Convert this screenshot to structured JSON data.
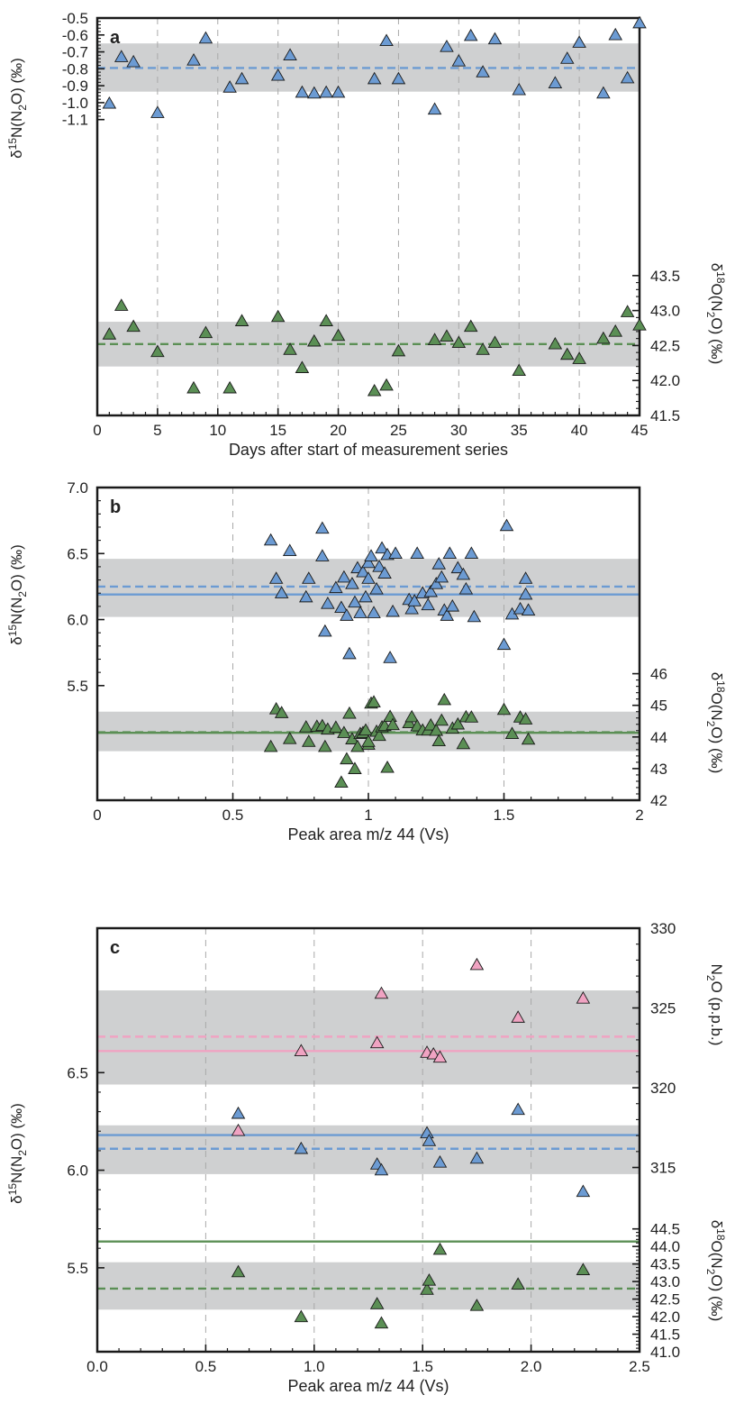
{
  "colors": {
    "blue": "#6c9bd3",
    "green": "#5b8f55",
    "pink": "#f0a3c2",
    "band": "#cfd0d1",
    "outline": "#1a1a1a"
  },
  "chart_data": [
    {
      "type": "scatter",
      "panel_label": "a",
      "xlabel": "Days after start of measurement series",
      "ylabel_left": {
        "base": "δ",
        "sup1": "15",
        "mid": "N(N",
        "sub": "2",
        "end": "O) (‰)"
      },
      "ylabel_right": {
        "base": "δ",
        "sup1": "18",
        "mid": "O(N",
        "sub": "2",
        "end": "O) (‰)"
      },
      "xlim": [
        0,
        45
      ],
      "x_ticks": [
        0,
        5,
        10,
        15,
        20,
        25,
        30,
        35,
        40,
        45
      ],
      "x_tick_labels": [
        "0",
        "5",
        "10",
        "15",
        "20",
        "25",
        "30",
        "35",
        "40",
        "45"
      ],
      "x_gridlines": [
        5,
        10,
        15,
        20,
        25,
        30,
        35,
        40
      ],
      "axes": {
        "left": {
          "range": [
            -1.65,
            -0.5
          ],
          "ticks": [
            -0.5,
            -0.6,
            -0.7,
            -0.8,
            -0.9,
            -1.0,
            -1.1
          ],
          "tick_labels": [
            "-0.5",
            "-0.6",
            "-0.7",
            "-0.8",
            "-0.9",
            "-1.0",
            "-1.1"
          ]
        },
        "right": {
          "range": [
            41.5,
            44.4
          ],
          "ticks": [
            41.5,
            42.0,
            42.5,
            43.0,
            43.5
          ],
          "tick_labels": [
            "41.5",
            "42.0",
            "42.5",
            "43.0",
            "43.5"
          ]
        }
      },
      "bands": [
        {
          "series": "d15N",
          "axis": "left",
          "range": [
            -0.935,
            -0.65
          ]
        },
        {
          "series": "d18O",
          "axis": "right",
          "range": [
            42.2,
            42.84
          ]
        }
      ],
      "lines": [
        {
          "axis": "left",
          "value": -0.795,
          "color": "blue",
          "style": "dashed"
        },
        {
          "axis": "right",
          "value": 42.52,
          "color": "green",
          "style": "dashed"
        }
      ],
      "series": [
        {
          "id": "d15N",
          "axis": "left",
          "color": "blue",
          "x": [
            1,
            2,
            3,
            5,
            8,
            9,
            11,
            12,
            15,
            16,
            17,
            18,
            19,
            20,
            23,
            24,
            25,
            28,
            29,
            30,
            31,
            32,
            33,
            35,
            38,
            39,
            40,
            42,
            43,
            44,
            45
          ],
          "y": [
            -1.005,
            -0.73,
            -0.76,
            -1.06,
            -0.75,
            -0.62,
            -0.91,
            -0.86,
            -0.84,
            -0.72,
            -0.94,
            -0.945,
            -0.94,
            -0.94,
            -0.86,
            -0.635,
            -0.86,
            -1.04,
            -0.67,
            -0.755,
            -0.605,
            -0.82,
            -0.625,
            -0.925,
            -0.885,
            -0.74,
            -0.645,
            -0.945,
            -0.6,
            -0.855,
            -0.53
          ]
        },
        {
          "id": "d18O",
          "axis": "right",
          "color": "green",
          "x": [
            1,
            2,
            3,
            5,
            8,
            9,
            11,
            12,
            15,
            16,
            17,
            18,
            19,
            20,
            23,
            24,
            25,
            28,
            29,
            30,
            31,
            32,
            33,
            35,
            38,
            39,
            40,
            42,
            43,
            44,
            45
          ],
          "y": [
            42.66,
            43.07,
            42.77,
            42.41,
            41.89,
            42.68,
            41.89,
            42.85,
            42.91,
            42.44,
            42.18,
            42.56,
            42.85,
            42.64,
            41.85,
            41.93,
            42.42,
            42.58,
            42.63,
            42.54,
            42.77,
            42.44,
            42.54,
            42.14,
            42.52,
            42.37,
            42.31,
            42.6,
            42.7,
            42.98,
            42.79
          ]
        }
      ]
    },
    {
      "type": "scatter",
      "panel_label": "b",
      "xlabel": "Peak area m/z 44 (Vs)",
      "ylabel_left": {
        "base": "δ",
        "sup1": "15",
        "mid": "N(N",
        "sub": "2",
        "end": "O) (‰)"
      },
      "ylabel_right": {
        "base": "δ",
        "sup1": "18",
        "mid": "O(N",
        "sub": "2",
        "end": "O) (‰)"
      },
      "xlim": [
        0,
        2
      ],
      "x_ticks": [
        0,
        0.5,
        1,
        1.5,
        2
      ],
      "x_tick_labels": [
        "0",
        "0.5",
        "1",
        "1.5",
        "2"
      ],
      "x_gridlines": [
        0.5,
        1,
        1.5
      ],
      "axes": {
        "left": {
          "range": [
            4.55,
            7.0
          ],
          "ticks": [
            5.5,
            6.0,
            6.5,
            7.0
          ],
          "tick_labels": [
            "5.5",
            "6.0",
            "6.5",
            "7.0"
          ]
        },
        "right": {
          "range": [
            42,
            46.9
          ],
          "ticks": [
            42,
            43,
            44,
            45,
            46
          ],
          "tick_labels": [
            "42",
            "43",
            "44",
            "45",
            "46"
          ]
        }
      },
      "bands": [
        {
          "series": "d15N",
          "axis": "left",
          "range": [
            6.02,
            6.46
          ]
        },
        {
          "series": "d18O",
          "axis": "right",
          "range": [
            43.55,
            44.8
          ]
        }
      ],
      "lines": [
        {
          "axis": "left",
          "value": 6.25,
          "color": "blue",
          "style": "dashed"
        },
        {
          "axis": "left",
          "value": 6.19,
          "color": "blue",
          "style": "solid"
        },
        {
          "axis": "right",
          "value": 44.15,
          "color": "green",
          "style": "dashed"
        },
        {
          "axis": "right",
          "value": 44.13,
          "color": "green",
          "style": "solid"
        }
      ],
      "series": [
        {
          "id": "d15N",
          "axis": "left",
          "color": "blue",
          "x": [
            0.64,
            0.66,
            0.68,
            0.71,
            0.77,
            0.78,
            0.83,
            0.83,
            0.84,
            0.85,
            0.88,
            0.9,
            0.91,
            0.92,
            0.93,
            0.94,
            0.95,
            0.96,
            0.97,
            0.98,
            0.99,
            1.0,
            1.0,
            1.01,
            1.02,
            1.03,
            1.04,
            1.05,
            1.06,
            1.07,
            1.08,
            1.09,
            1.1,
            1.15,
            1.16,
            1.17,
            1.18,
            1.2,
            1.22,
            1.23,
            1.25,
            1.26,
            1.27,
            1.28,
            1.29,
            1.3,
            1.31,
            1.33,
            1.35,
            1.36,
            1.38,
            1.39,
            1.5,
            1.51,
            1.53,
            1.56,
            1.58,
            1.58,
            1.59
          ],
          "y": [
            6.6,
            6.31,
            6.2,
            6.52,
            6.17,
            6.31,
            6.48,
            6.69,
            5.91,
            6.12,
            6.24,
            6.09,
            6.32,
            6.03,
            5.74,
            6.27,
            6.13,
            6.39,
            6.05,
            6.36,
            6.17,
            6.43,
            6.31,
            6.48,
            6.05,
            6.23,
            6.4,
            6.54,
            6.35,
            6.49,
            5.71,
            6.06,
            6.5,
            6.15,
            6.08,
            6.14,
            6.5,
            6.2,
            6.11,
            6.21,
            6.27,
            6.42,
            6.32,
            6.07,
            6.03,
            6.5,
            6.1,
            6.39,
            6.34,
            6.23,
            6.5,
            6.02,
            5.81,
            6.71,
            6.04,
            6.08,
            6.19,
            6.31,
            6.07
          ]
        },
        {
          "id": "d18O",
          "axis": "right",
          "color": "green",
          "x": [
            0.64,
            0.66,
            0.68,
            0.71,
            0.77,
            0.78,
            0.81,
            0.83,
            0.84,
            0.85,
            0.88,
            0.9,
            0.91,
            0.92,
            0.93,
            0.94,
            0.95,
            0.96,
            0.97,
            0.98,
            0.99,
            1.0,
            1.0,
            1.01,
            1.02,
            1.03,
            1.04,
            1.05,
            1.06,
            1.07,
            1.08,
            1.09,
            1.15,
            1.16,
            1.18,
            1.2,
            1.22,
            1.23,
            1.25,
            1.26,
            1.27,
            1.28,
            1.31,
            1.33,
            1.35,
            1.36,
            1.38,
            1.5,
            1.53,
            1.56,
            1.58,
            1.59
          ],
          "y": [
            43.69,
            44.88,
            44.76,
            43.94,
            44.31,
            43.85,
            44.33,
            44.35,
            43.69,
            44.24,
            44.3,
            42.56,
            44.13,
            43.3,
            44.74,
            43.93,
            42.99,
            43.69,
            44.1,
            44.13,
            44.21,
            43.76,
            43.85,
            45.06,
            45.1,
            44.17,
            44.04,
            44.31,
            44.35,
            43.03,
            44.64,
            44.38,
            44.44,
            44.63,
            44.34,
            44.21,
            44.21,
            44.37,
            44.2,
            43.87,
            44.52,
            45.17,
            44.27,
            44.4,
            43.78,
            44.63,
            44.62,
            44.86,
            44.1,
            44.62,
            44.56,
            43.92
          ]
        }
      ]
    },
    {
      "type": "scatter",
      "panel_label": "c",
      "xlabel": "Peak area m/z 44 (Vs)",
      "ylabel_left": {
        "base": "δ",
        "sup1": "15",
        "mid": "N(N",
        "sub": "2",
        "end": "O) (‰)"
      },
      "ylabel_right": {
        "base": "δ",
        "sup1": "18",
        "mid": "O(N",
        "sub": "2",
        "end": "O) (‰)"
      },
      "ylabel_right_top": {
        "base": "N",
        "sub": "2",
        "end": "O (p.p.b.)"
      },
      "xlim": [
        0,
        2.5
      ],
      "x_ticks": [
        0,
        0.5,
        1.0,
        1.5,
        2.0,
        2.5
      ],
      "x_tick_labels": [
        "0.0",
        "0.5",
        "1.0",
        "1.5",
        "2.0",
        "2.5"
      ],
      "x_gridlines": [
        0.5,
        1.0,
        1.5,
        2.0
      ],
      "axes": {
        "left": {
          "range": [
            5.07,
            7.24
          ],
          "ticks": [
            5.5,
            6.0,
            6.5
          ],
          "tick_labels": [
            "5.5",
            "6.0",
            "6.5"
          ]
        },
        "right_top": {
          "range": [
            303.45,
            330
          ],
          "ticks": [
            315,
            320,
            325,
            330
          ],
          "tick_labels": [
            "315",
            "320",
            "325",
            "330"
          ]
        },
        "right": {
          "range": [
            41.0,
            45.93
          ],
          "ticks": [
            41.0,
            41.5,
            42.0,
            42.5,
            43.0,
            43.5,
            44.0,
            44.5
          ],
          "tick_labels": [
            "41.0",
            "41.5",
            "42.0",
            "42.5",
            "43.0",
            "43.5",
            "44.0",
            "44.5"
          ]
        }
      },
      "bands": [
        {
          "series": "N2O",
          "axis": "right_top",
          "range": [
            320.2,
            326.1
          ]
        },
        {
          "series": "d15N",
          "axis": "left",
          "range": [
            5.98,
            6.23
          ]
        },
        {
          "series": "d18O",
          "axis": "right",
          "range": [
            42.2,
            43.55
          ]
        }
      ],
      "lines": [
        {
          "axis": "right_top",
          "value": 323.2,
          "color": "pink",
          "style": "dashed"
        },
        {
          "axis": "right_top",
          "value": 322.3,
          "color": "pink",
          "style": "solid"
        },
        {
          "axis": "left",
          "value": 6.18,
          "color": "blue",
          "style": "solid"
        },
        {
          "axis": "left",
          "value": 6.11,
          "color": "blue",
          "style": "dashed"
        },
        {
          "axis": "right",
          "value": 44.14,
          "color": "green",
          "style": "solid"
        },
        {
          "axis": "right",
          "value": 42.8,
          "color": "green",
          "style": "dashed"
        }
      ],
      "series": [
        {
          "id": "N2O",
          "axis": "right_top",
          "color": "pink",
          "x": [
            0.65,
            0.94,
            1.29,
            1.31,
            1.52,
            1.55,
            1.58,
            1.75,
            1.94,
            2.24
          ],
          "y": [
            317.3,
            322.3,
            322.8,
            325.9,
            322.2,
            322.1,
            321.9,
            327.7,
            324.4,
            325.6
          ]
        },
        {
          "id": "d15N",
          "axis": "left",
          "color": "blue",
          "x": [
            0.65,
            0.94,
            1.29,
            1.31,
            1.52,
            1.53,
            1.58,
            1.75,
            1.94,
            2.24
          ],
          "y": [
            6.29,
            6.11,
            6.03,
            6.0,
            6.19,
            6.15,
            6.04,
            6.06,
            6.31,
            5.89
          ]
        },
        {
          "id": "d18O",
          "axis": "right",
          "color": "green",
          "x": [
            0.65,
            0.94,
            1.29,
            1.31,
            1.52,
            1.53,
            1.58,
            1.75,
            1.94,
            2.24
          ],
          "y": [
            43.27,
            41.99,
            42.36,
            41.81,
            42.77,
            43.03,
            43.91,
            42.31,
            42.92,
            43.33
          ]
        }
      ]
    }
  ]
}
